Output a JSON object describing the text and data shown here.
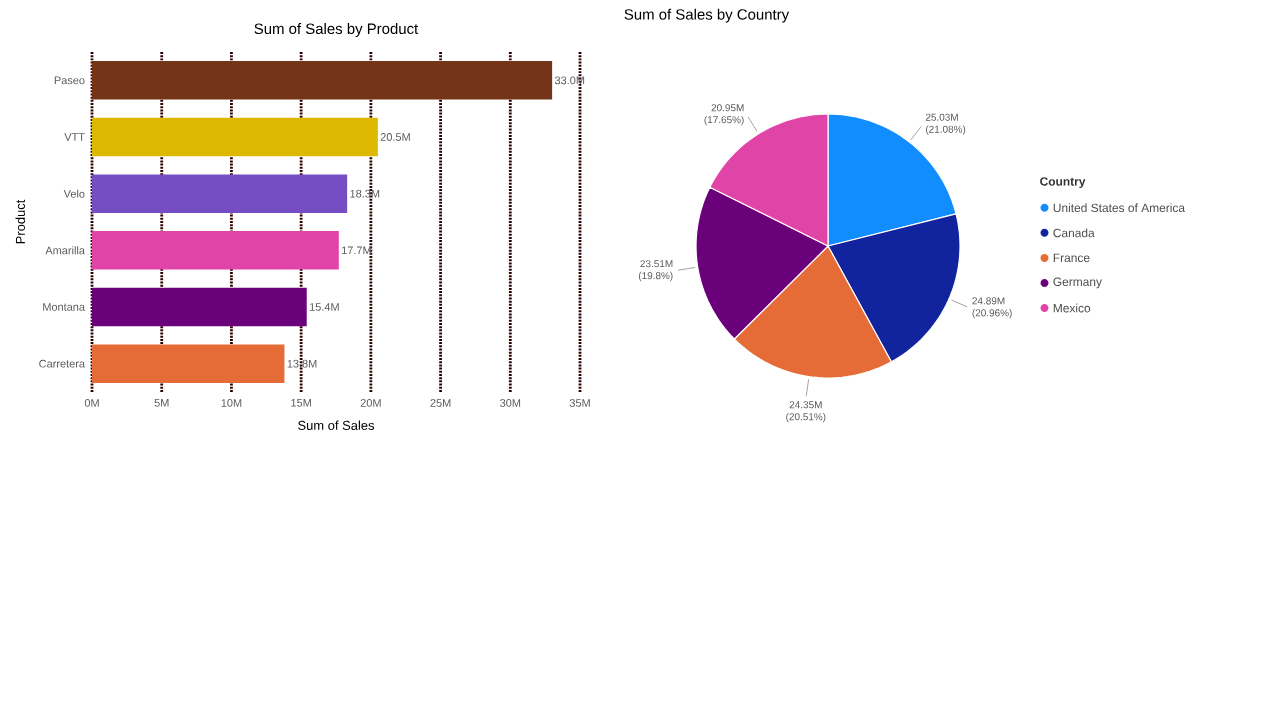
{
  "chart_data": [
    {
      "type": "bar",
      "orientation": "horizontal",
      "title": "Sum of Sales by Product",
      "xlabel": "Sum of Sales",
      "ylabel": "Product",
      "grid": "x",
      "categories": [
        "Paseo",
        "VTT",
        "Velo",
        "Amarilla",
        "Montana",
        "Carretera"
      ],
      "values": [
        33.0,
        20.5,
        18.3,
        17.7,
        15.4,
        13.8
      ],
      "colors": [
        "#743418",
        "#dcb800",
        "#744ec2",
        "#e044a7",
        "#6b007b",
        "#e66c37"
      ],
      "value_labels": [
        "33.0M",
        "20.5M",
        "18.3M",
        "17.7M",
        "15.4M",
        "13.8M"
      ],
      "xlim": [
        0,
        35
      ],
      "xticks": [
        {
          "value": 0,
          "label": "0M"
        },
        {
          "value": 5,
          "label": "5M"
        },
        {
          "value": 10,
          "label": "10M"
        },
        {
          "value": 15,
          "label": "15M"
        },
        {
          "value": 20,
          "label": "20M"
        },
        {
          "value": 25,
          "label": "25M"
        },
        {
          "value": 30,
          "label": "30M"
        },
        {
          "value": 35,
          "label": "35M"
        }
      ]
    },
    {
      "type": "pie",
      "title": "Sum of Sales by Country",
      "legend_title": "Country",
      "legend": "right",
      "categories": [
        "United States of America",
        "Canada",
        "France",
        "Germany",
        "Mexico"
      ],
      "values": [
        21.08,
        20.96,
        20.51,
        19.8,
        17.65
      ],
      "colors": [
        "#118dff",
        "#12239e",
        "#e66c37",
        "#6b007b",
        "#e044a7"
      ],
      "value_labels": [
        "25.03M (21.08%)",
        "24.89M (20.96%)",
        "24.35M (20.51%)",
        "23.51M (19.8%)",
        "20.95M (17.65%)"
      ]
    }
  ]
}
